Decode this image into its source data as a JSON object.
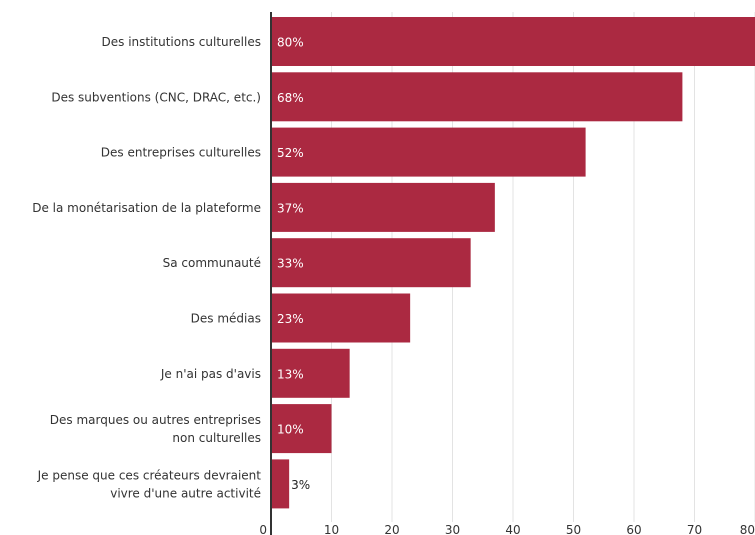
{
  "chart_data": {
    "type": "bar",
    "orientation": "horizontal",
    "categories": [
      [
        "Des institutions culturelles"
      ],
      [
        "Des subventions (CNC, DRAC, etc.)"
      ],
      [
        "Des entreprises culturelles"
      ],
      [
        "De la monétarisation de la plateforme"
      ],
      [
        "Sa communauté"
      ],
      [
        "Des médias"
      ],
      [
        "Je n'ai pas d'avis"
      ],
      [
        "Des marques ou autres entreprises",
        "non culturelles"
      ],
      [
        "Je pense que ces créateurs devraient",
        "vivre d'une autre activité"
      ]
    ],
    "values": [
      80,
      68,
      52,
      37,
      33,
      23,
      13,
      10,
      3
    ],
    "data_labels": [
      "80%",
      "68%",
      "52%",
      "37%",
      "33%",
      "23%",
      "13%",
      "10%",
      "3%"
    ],
    "xlim": [
      0,
      80
    ],
    "x_ticks": [
      0,
      10,
      20,
      30,
      40,
      50,
      60,
      70,
      80
    ],
    "grid": true,
    "bar_color": "#ab2941",
    "label_color_inside": "#ffffff",
    "label_color_outside": "#222222",
    "axis_text_color": "#333333",
    "grid_color": "#e3e3e3",
    "axis_color": "#333333"
  }
}
